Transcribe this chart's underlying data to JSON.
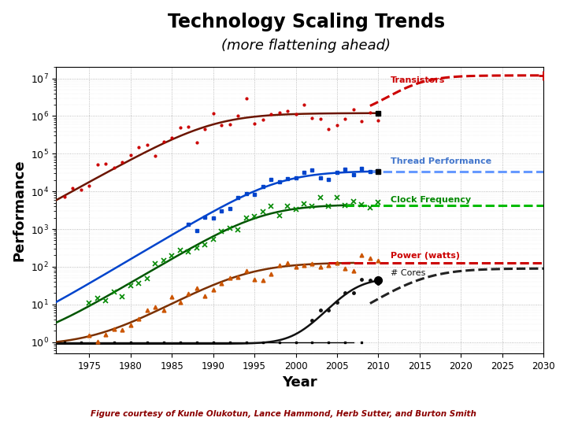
{
  "title": "Technology Scaling Trends",
  "subtitle": "(more flattening ahead)",
  "xlabel": "Year",
  "ylabel": "Performance",
  "xmin": 1971,
  "xmax": 2032,
  "ylim_low": 0.5,
  "ylim_high": 20000000.0,
  "xticks": [
    1975,
    1980,
    1985,
    1990,
    1995,
    2000,
    2005,
    2010,
    2015,
    2020,
    2025,
    2030
  ],
  "grid_color": "#aaaaaa",
  "background_color": "#ffffff",
  "footer_text": "Figure courtesy of Kunle Olukotun, Lance Hammond, Herb Sutter, and Burton Smith",
  "footer_bg": "#5aabdc",
  "footer_text_color": "#8b0000",
  "trans_color": "#cc0000",
  "trans_curve_color": "#6b1500",
  "thread_color": "#0044cc",
  "thread_dashed_color": "#6699ff",
  "clock_color": "#008800",
  "clock_dashed_color": "#00bb00",
  "power_curve_color": "#7a3000",
  "power_scatter_color": "#cc5500",
  "power_dashed_color": "#cc0000",
  "cores_color": "#111111",
  "cores_dashed_color": "#222222"
}
